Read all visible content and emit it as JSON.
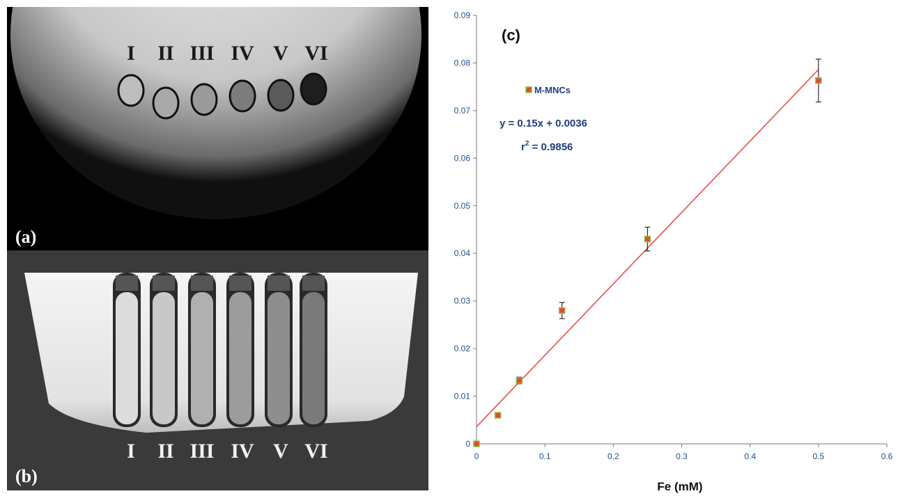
{
  "panel_a": {
    "label": "(a)",
    "samples": [
      "I",
      "II",
      "III",
      "IV",
      "V",
      "VI"
    ]
  },
  "panel_b": {
    "label": "(b)",
    "samples": [
      "I",
      "II",
      "III",
      "IV",
      "V",
      "VI"
    ]
  },
  "colors": {
    "marker_fill": "#e8482b",
    "marker_edge": "#8bbf4a",
    "fit_line": "#e8413a",
    "axis_text": "#1f4e8c",
    "annotation_text": "#1f3d7a"
  },
  "chart_data": {
    "type": "scatter",
    "panel_label": "(c)",
    "xlabel": "Fe (mM)",
    "ylabel": "",
    "xlim": [
      0,
      0.6
    ],
    "ylim": [
      0,
      0.09
    ],
    "xticks": [
      "0",
      "0.1",
      "0.2",
      "0.3",
      "0.4",
      "0.5",
      "0.6"
    ],
    "yticks": [
      "0",
      "0.01",
      "0.02",
      "0.03",
      "0.04",
      "0.05",
      "0.06",
      "0.07",
      "0.08",
      "0.09"
    ],
    "grid": false,
    "legend_position": "top-left",
    "series": [
      {
        "name": "M-MNCs",
        "x": [
          0,
          0.03125,
          0.0625,
          0.125,
          0.25,
          0.5
        ],
        "y": [
          0,
          0.006,
          0.0133,
          0.028,
          0.043,
          0.0763
        ],
        "error": [
          0,
          0.0003,
          0.0007,
          0.0017,
          0.0025,
          0.0045
        ]
      }
    ],
    "fit": {
      "slope": 0.15,
      "intercept": 0.0036,
      "x_range": [
        0,
        0.5
      ]
    },
    "equation": "y = 0.15x + 0.0036",
    "r2_prefix": "r",
    "r2_exp": "2",
    "r2_value": " = 0.9856"
  }
}
